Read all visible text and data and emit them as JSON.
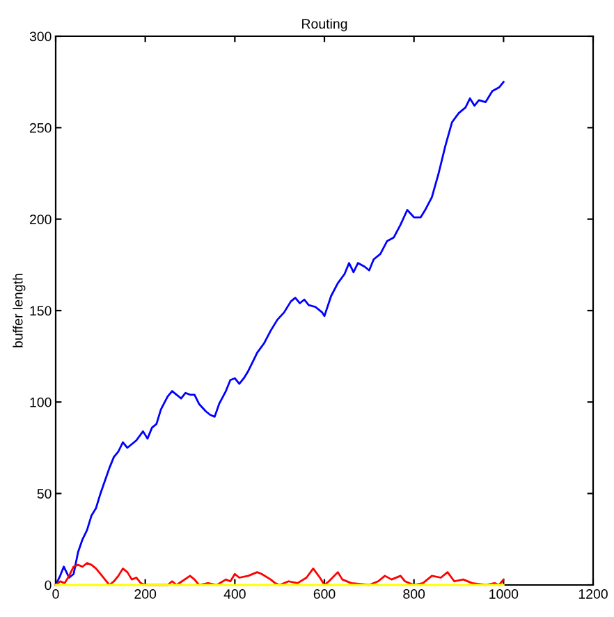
{
  "chart_data": {
    "type": "line",
    "title": "Routing",
    "ylabel": "buffer length",
    "xlim": [
      0,
      1200
    ],
    "xticks": [
      0,
      200,
      400,
      600,
      800,
      1000,
      1200
    ],
    "ylim": [
      0,
      300
    ],
    "yticks": [
      0,
      50,
      100,
      150,
      200,
      250,
      300
    ],
    "grid": false,
    "legend": false,
    "marker": "none",
    "line_style": "solid",
    "series": [
      {
        "color": "#0000ff",
        "x": [
          0,
          10,
          18,
          30,
          40,
          50,
          60,
          70,
          80,
          90,
          100,
          110,
          120,
          130,
          140,
          150,
          160,
          170,
          180,
          195,
          205,
          215,
          225,
          235,
          250,
          260,
          270,
          280,
          290,
          300,
          310,
          320,
          335,
          345,
          355,
          365,
          380,
          390,
          400,
          410,
          420,
          430,
          440,
          450,
          465,
          480,
          495,
          510,
          525,
          535,
          545,
          555,
          565,
          580,
          595,
          600,
          615,
          630,
          645,
          655,
          665,
          675,
          690,
          700,
          710,
          725,
          740,
          755,
          770,
          785,
          800,
          815,
          825,
          840,
          855,
          870,
          885,
          900,
          915,
          925,
          935,
          945,
          960,
          975,
          990,
          1000
        ],
        "values": [
          0,
          5,
          10,
          4,
          6,
          18,
          25,
          30,
          38,
          42,
          50,
          57,
          64,
          70,
          73,
          78,
          75,
          77,
          79,
          84,
          80,
          86,
          88,
          96,
          103,
          106,
          104,
          102,
          105,
          104,
          104,
          99,
          95,
          93,
          92,
          99,
          106,
          112,
          113,
          110,
          113,
          117,
          122,
          127,
          132,
          139,
          145,
          149,
          155,
          157,
          154,
          156,
          153,
          152,
          149,
          147,
          158,
          165,
          170,
          176,
          171,
          176,
          174,
          172,
          178,
          181,
          188,
          190,
          197,
          205,
          201,
          201,
          205,
          212,
          225,
          240,
          253,
          258,
          261,
          266,
          262,
          265,
          264,
          270,
          272,
          275
        ]
      },
      {
        "color": "#ff0000",
        "x": [
          0,
          10,
          20,
          30,
          40,
          50,
          60,
          70,
          80,
          90,
          100,
          110,
          120,
          130,
          140,
          150,
          160,
          170,
          180,
          190,
          200,
          250,
          260,
          270,
          300,
          310,
          320,
          340,
          360,
          380,
          390,
          400,
          410,
          430,
          450,
          460,
          480,
          490,
          500,
          520,
          540,
          560,
          575,
          590,
          600,
          610,
          630,
          640,
          660,
          700,
          720,
          735,
          750,
          770,
          780,
          800,
          820,
          840,
          860,
          875,
          890,
          910,
          930,
          960,
          980,
          990,
          1000
        ],
        "values": [
          0,
          2,
          1,
          5,
          10,
          11,
          10,
          12,
          11,
          9,
          6,
          3,
          0,
          2,
          5,
          9,
          7,
          3,
          4,
          1,
          0,
          0,
          2,
          0,
          5,
          3,
          0,
          1,
          0,
          3,
          2,
          6,
          4,
          5,
          7,
          6,
          3,
          1,
          0,
          2,
          1,
          4,
          9,
          4,
          0,
          2,
          7,
          3,
          1,
          0,
          2,
          5,
          3,
          5,
          2,
          0,
          1,
          5,
          4,
          7,
          2,
          3,
          1,
          0,
          1,
          0,
          3
        ]
      },
      {
        "color": "#ffff00",
        "x": [
          0,
          1000
        ],
        "values": [
          0,
          0
        ]
      }
    ]
  }
}
